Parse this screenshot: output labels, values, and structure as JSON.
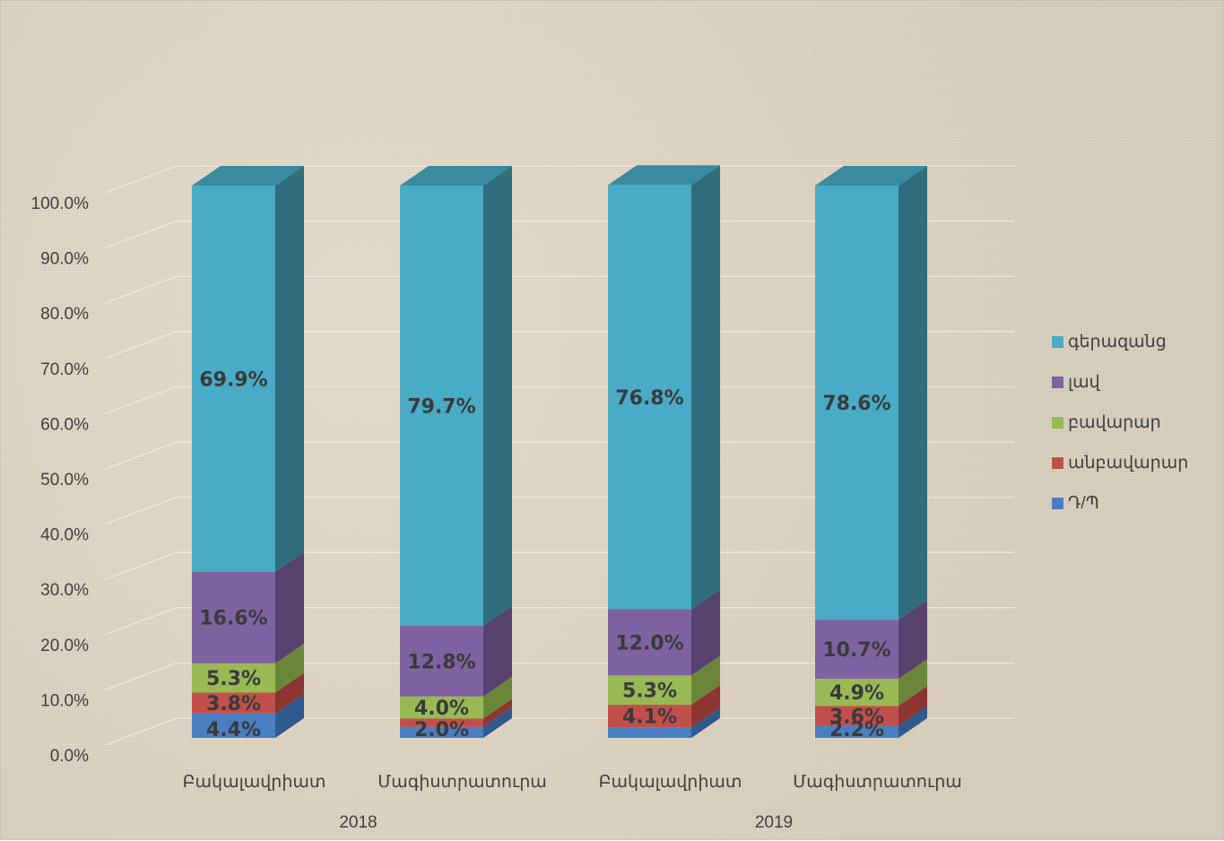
{
  "chart_data": {
    "type": "bar",
    "stacked": true,
    "three_d": true,
    "categories": [
      "Բակալավրիատ",
      "Մագիստրատուրա",
      "Բակալավրիատ",
      "Մագիստրատուրա"
    ],
    "groups": [
      {
        "label": "2018",
        "categories": [
          0,
          1
        ]
      },
      {
        "label": "2019",
        "categories": [
          2,
          3
        ]
      }
    ],
    "series": [
      {
        "name": "Դ/Պ",
        "color": "#4a7ec2",
        "side": "#2f5a8e",
        "top": "#6f9ad6",
        "values": [
          4.4,
          2.0,
          1.9,
          2.2
        ],
        "labels": [
          "4.4%",
          "2.0%",
          "",
          "2.2%"
        ]
      },
      {
        "name": "անբավարար",
        "color": "#c24f4a",
        "side": "#8e3531",
        "top": "#d77571",
        "values": [
          3.8,
          1.5,
          4.1,
          3.6
        ],
        "labels": [
          "3.8%",
          "",
          "4.1%",
          "3.6%"
        ]
      },
      {
        "name": "բավարար",
        "color": "#98b954",
        "side": "#6c8637",
        "top": "#b2cf78",
        "values": [
          5.3,
          4.0,
          5.3,
          4.9
        ],
        "labels": [
          "5.3%",
          "4.0%",
          "5.3%",
          "4.9%"
        ]
      },
      {
        "name": "լավ",
        "color": "#7e62a1",
        "side": "#56416f",
        "top": "#9c84bb",
        "values": [
          16.6,
          12.8,
          12.0,
          10.7
        ],
        "labels": [
          "16.6%",
          "12.8%",
          "12.0%",
          "10.7%"
        ]
      },
      {
        "name": "գերազանց",
        "color": "#48acc6",
        "side": "#2e6e7f",
        "top": "#3a8aa0",
        "values": [
          69.9,
          79.7,
          76.8,
          78.6
        ],
        "labels": [
          "69.9%",
          "79.7%",
          "76.8%",
          "78.6%"
        ]
      }
    ],
    "y_ticks": [
      "0.0%",
      "10.0%",
      "20.0%",
      "30.0%",
      "40.0%",
      "50.0%",
      "60.0%",
      "70.0%",
      "80.0%",
      "90.0%",
      "100.0%"
    ],
    "ylim": [
      0,
      100
    ],
    "grid": true,
    "legend_position": "right",
    "legend_order": [
      "գերազանց",
      "լավ",
      "բավարար",
      "անբավարար",
      "Դ/Պ"
    ]
  }
}
